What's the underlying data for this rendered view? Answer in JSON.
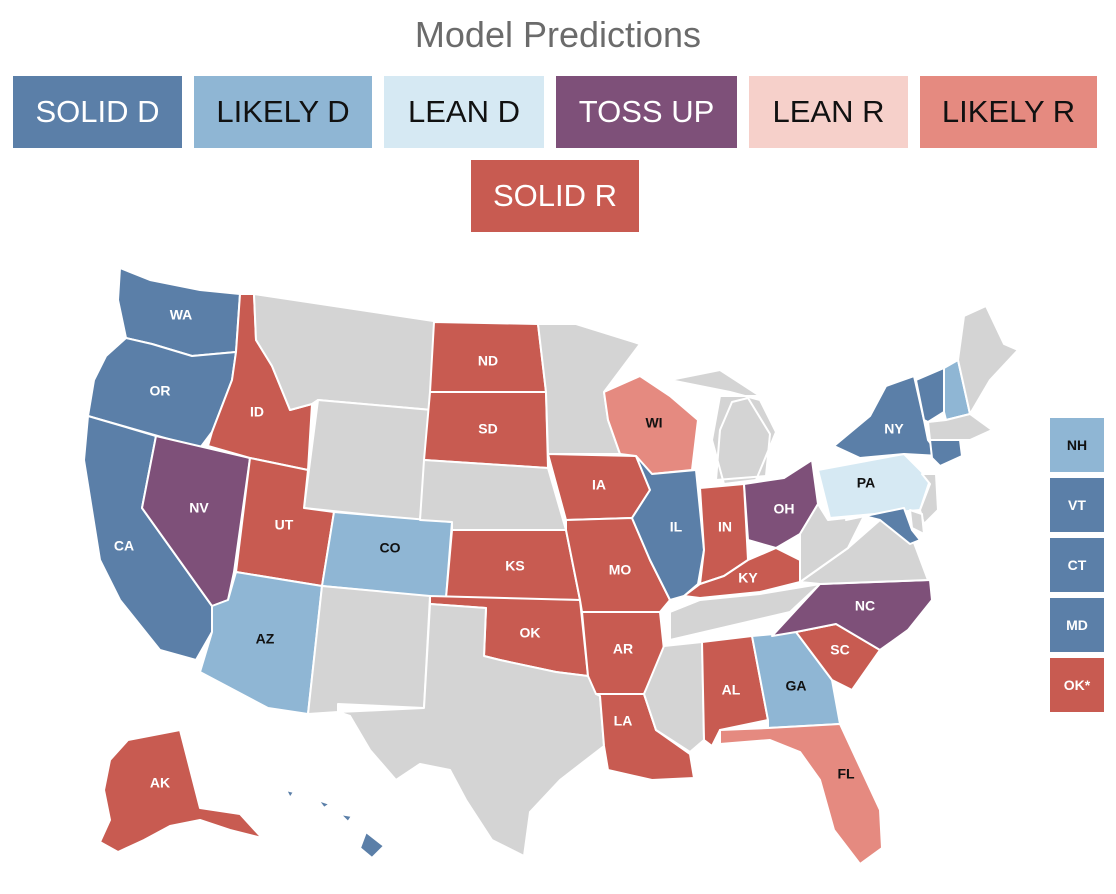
{
  "title": "Model Predictions",
  "categories": {
    "solid_d": {
      "label": "SOLID D",
      "color": "#5b7fa8",
      "text_color": "#ffffff"
    },
    "likely_d": {
      "label": "LIKELY D",
      "color": "#8fb6d4",
      "text_color": "#111111"
    },
    "lean_d": {
      "label": "LEAN D",
      "color": "#d6e9f3",
      "text_color": "#111111"
    },
    "toss_up": {
      "label": "TOSS UP",
      "color": "#7e5079",
      "text_color": "#ffffff"
    },
    "lean_r": {
      "label": "LEAN R",
      "color": "#f6d0ca",
      "text_color": "#111111"
    },
    "likely_r": {
      "label": "LIKELY R",
      "color": "#e58a80",
      "text_color": "#111111"
    },
    "solid_r": {
      "label": "SOLID R",
      "color": "#c85b51",
      "text_color": "#ffffff"
    },
    "none": {
      "label": "",
      "color": "#d4d4d4",
      "text_color": "#ffffff"
    }
  },
  "states": {
    "WA": "solid_d",
    "OR": "solid_d",
    "CA": "solid_d",
    "NV": "toss_up",
    "ID": "solid_r",
    "UT": "solid_r",
    "AZ": "likely_d",
    "CO": "likely_d",
    "MT": "none",
    "WY": "none",
    "NM": "none",
    "TX": "none",
    "ND": "solid_r",
    "SD": "solid_r",
    "NE": "none",
    "KS": "solid_r",
    "OK": "solid_r",
    "MN": "none",
    "IA": "solid_r",
    "MO": "solid_r",
    "AR": "solid_r",
    "LA": "solid_r",
    "WI": "likely_r",
    "IL": "solid_d",
    "MI": "none",
    "IN": "solid_r",
    "OH": "toss_up",
    "KY": "solid_r",
    "TN": "none",
    "MS": "none",
    "AL": "solid_r",
    "GA": "likely_d",
    "FL": "likely_r",
    "SC": "solid_r",
    "NC": "toss_up",
    "VA": "none",
    "WV": "none",
    "PA": "lean_d",
    "NY": "solid_d",
    "VT": "solid_d",
    "NH": "likely_d",
    "ME": "none",
    "MA": "none",
    "CT": "solid_d",
    "MD": "solid_d",
    "NJ": "none",
    "DE": "none",
    "AK": "solid_r",
    "HI": "solid_d"
  },
  "side_legend": [
    {
      "label": "NH",
      "category": "likely_d"
    },
    {
      "label": "VT",
      "category": "solid_d"
    },
    {
      "label": "CT",
      "category": "solid_d"
    },
    {
      "label": "MD",
      "category": "solid_d"
    },
    {
      "label": "OK*",
      "category": "solid_r"
    }
  ]
}
